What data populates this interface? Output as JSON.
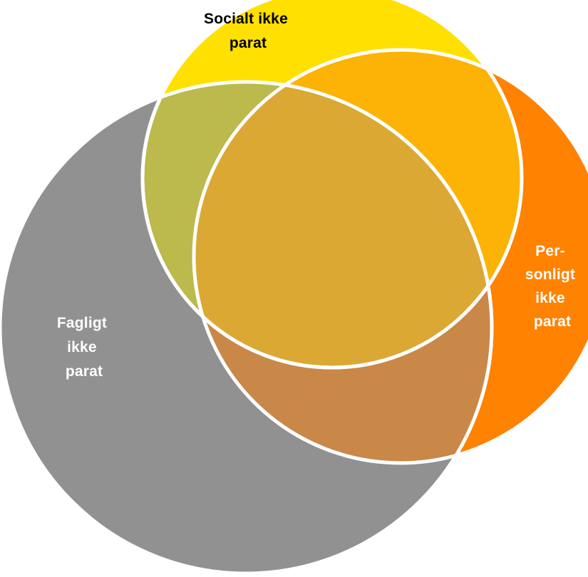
{
  "diagram": {
    "type": "venn",
    "sets": [
      {
        "id": "social",
        "lines": [
          "Socialt ikke",
          "parat"
        ],
        "color": "#FFE000",
        "label_color": "#000000"
      },
      {
        "id": "personal",
        "lines": [
          "Per-",
          "sonligt",
          "ikke",
          "parat"
        ],
        "color": "#FF8200",
        "label_color": "#FFFFFF"
      },
      {
        "id": "academic",
        "lines": [
          "Fagligt",
          "ikke",
          "parat"
        ],
        "color": "#919191",
        "label_color": "#FFFFFF"
      }
    ],
    "regions": {
      "social_personal": "#FCB305",
      "social_academic": "#BCB94D",
      "personal_academic": "#C98748",
      "all_three": "#DBA834"
    },
    "outline_color": "#FFFFFF"
  }
}
